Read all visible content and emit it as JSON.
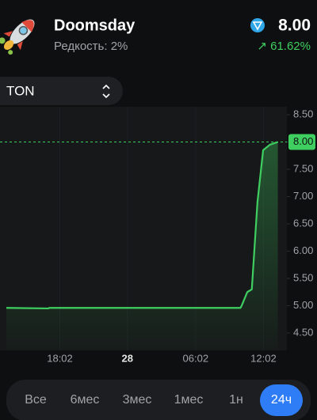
{
  "header": {
    "name": "Doomsday",
    "rarity": "Редкость: 2%",
    "price": "8.00",
    "change": "↗ 61.62%"
  },
  "currency_selector": "TON",
  "chart_data": {
    "type": "area",
    "x": [
      13.3,
      17.0,
      17.1,
      34.0,
      34.1,
      34.6,
      35.0,
      35.5,
      36.0,
      36.6,
      37.3
    ],
    "values": [
      4.96,
      4.95,
      4.96,
      4.96,
      5.0,
      5.25,
      5.3,
      6.9,
      7.85,
      7.95,
      8.0
    ],
    "color": "#3fcf60",
    "xlim": [
      13.3,
      37.4
    ],
    "xticks": [
      {
        "value": 18.03,
        "label": "18:02"
      },
      {
        "value": 24,
        "label": "28",
        "emphasis": true
      },
      {
        "value": 30.03,
        "label": "06:02"
      },
      {
        "value": 36.03,
        "label": "12:02"
      }
    ],
    "ylim": [
      4.4,
      8.6
    ],
    "yticks": [
      {
        "value": 4.5,
        "label": "4.50"
      },
      {
        "value": 5,
        "label": "5.00"
      },
      {
        "value": 5.5,
        "label": "5.50"
      },
      {
        "value": 6,
        "label": "6.00"
      },
      {
        "value": 6.5,
        "label": "6.50"
      },
      {
        "value": 7,
        "label": "7.00"
      },
      {
        "value": 7.5,
        "label": "7.50"
      },
      {
        "value": 8,
        "label": "8.00"
      },
      {
        "value": 8.5,
        "label": "8.50"
      }
    ],
    "current": {
      "value": 8,
      "label": "8.00"
    },
    "grid": true
  },
  "tabs": [
    "Все",
    "6мес",
    "3мес",
    "1мес",
    "1н",
    "24ч"
  ],
  "selected_tab": 5
}
